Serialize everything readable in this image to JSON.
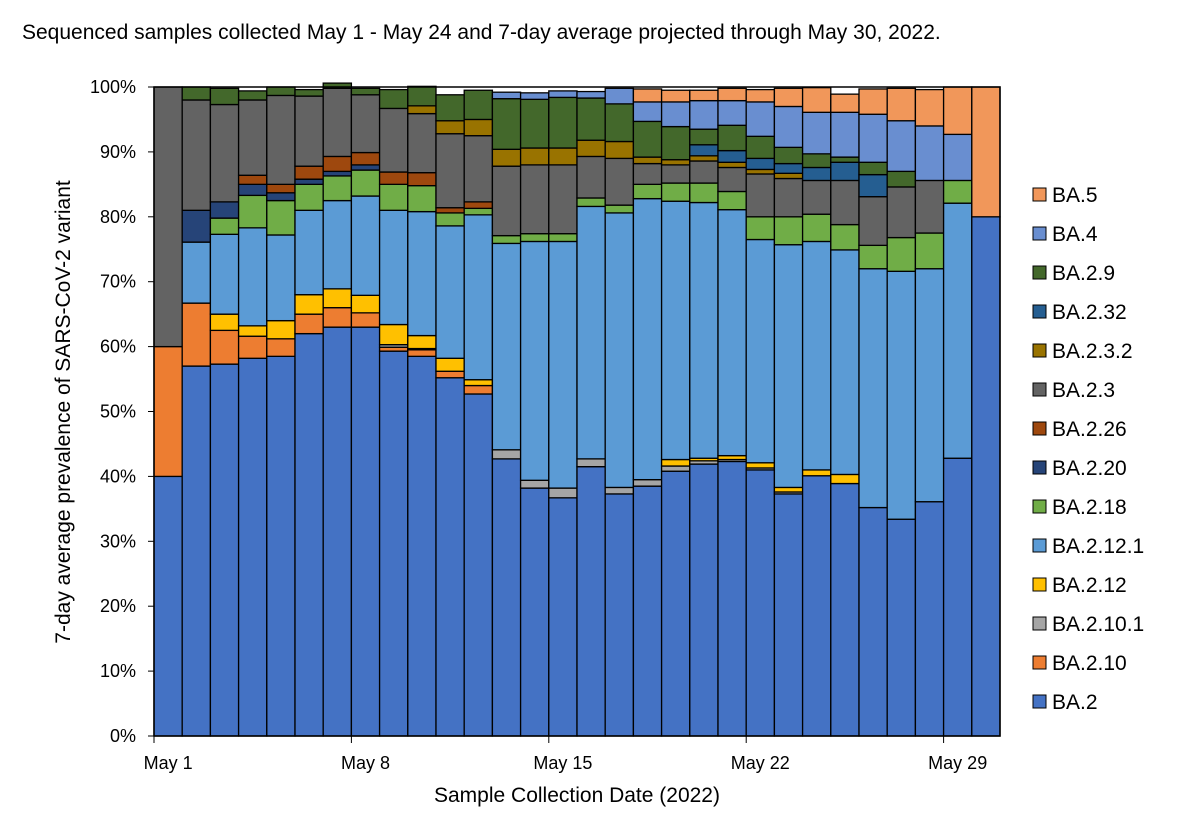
{
  "chart_data": {
    "type": "bar",
    "stacked": true,
    "title": "Sequenced samples collected May 1 - May 24 and 7-day average projected through May 30, 2022.",
    "xlabel": "Sample Collection Date (2022)",
    "ylabel": "7-day average prevalence of SARS-CoV-2 variant",
    "ylim": [
      0,
      100
    ],
    "yticks": [
      "0%",
      "10%",
      "20%",
      "30%",
      "40%",
      "50%",
      "60%",
      "70%",
      "80%",
      "90%",
      "100%"
    ],
    "ytick_values": [
      0,
      10,
      20,
      30,
      40,
      50,
      60,
      70,
      80,
      90,
      100
    ],
    "xtick_labels": [
      "May 1",
      "May 8",
      "May 15",
      "May 22",
      "May 29"
    ],
    "xtick_category_index": [
      0,
      7,
      14,
      21,
      28
    ],
    "categories": [
      "May 1",
      "May 2",
      "May 3",
      "May 4",
      "May 5",
      "May 6",
      "May 7",
      "May 8",
      "May 9",
      "May 10",
      "May 11",
      "May 12",
      "May 13",
      "May 14",
      "May 15",
      "May 16",
      "May 17",
      "May 18",
      "May 19",
      "May 20",
      "May 21",
      "May 22",
      "May 23",
      "May 24",
      "May 25",
      "May 26",
      "May 27",
      "May 28",
      "May 29",
      "May 30"
    ],
    "legend_position": "right",
    "grid": false,
    "series": [
      {
        "name": "BA.2",
        "color": "#4472C4",
        "values": [
          40,
          57,
          57.3,
          58.2,
          58.5,
          62,
          63,
          63,
          59.3,
          58.5,
          55.2,
          52.7,
          42.7,
          38.2,
          36.7,
          41.5,
          37.3,
          38.5,
          40.8,
          41.9,
          42.3,
          41,
          37.3,
          40.1,
          38.9,
          35.2,
          33.4,
          36.1,
          42.8,
          80
        ]
      },
      {
        "name": "BA.2.10",
        "color": "#ED7D31",
        "values": [
          20,
          9.7,
          5.2,
          3.4,
          2.7,
          3,
          3,
          2.2,
          0.6,
          1,
          1,
          1.3,
          0,
          0,
          0,
          0,
          0,
          0,
          0,
          0,
          0,
          0,
          0,
          0,
          0,
          0,
          0,
          0,
          0,
          0
        ]
      },
      {
        "name": "BA.2.10.1",
        "color": "#A5A5A5",
        "values": [
          0,
          0,
          0,
          0,
          0,
          0,
          0,
          0,
          0.4,
          0.2,
          0,
          0,
          1.4,
          1.2,
          1.5,
          1.2,
          1,
          1,
          0.8,
          0.5,
          0.3,
          0.3,
          0.3,
          0,
          0,
          0,
          0,
          0,
          0,
          0
        ]
      },
      {
        "name": "BA.2.12",
        "color": "#FFC000",
        "values": [
          0,
          0,
          2.5,
          1.6,
          2.8,
          3,
          2.9,
          2.7,
          3.1,
          2,
          2,
          0.9,
          0,
          0,
          0,
          0,
          0,
          0,
          1,
          0.4,
          0.6,
          0.8,
          0.7,
          0.9,
          1.4,
          0,
          0,
          0,
          0,
          0
        ]
      },
      {
        "name": "BA.2.12.1",
        "color": "#5B9BD5",
        "values": [
          0,
          9.4,
          12.3,
          15.1,
          13.2,
          13,
          13.6,
          15.3,
          17.6,
          19.1,
          20.4,
          25.4,
          31.8,
          36.8,
          38,
          38.9,
          42.3,
          43.3,
          39.8,
          39.4,
          37.9,
          34.4,
          37.4,
          35.2,
          34.6,
          36.8,
          38.2,
          35.9,
          39.3,
          0
        ]
      },
      {
        "name": "BA.2.18",
        "color": "#70AD47",
        "values": [
          0,
          0,
          2.5,
          5,
          5.3,
          4,
          3.8,
          4,
          4,
          4,
          2,
          1,
          1.2,
          1.2,
          1.2,
          1.3,
          1.2,
          2.2,
          2.8,
          3,
          2.8,
          3.5,
          4.3,
          4.2,
          3.9,
          3.6,
          5.2,
          5.5,
          3.5,
          0
        ]
      },
      {
        "name": "BA.2.20",
        "color": "#264478",
        "values": [
          0,
          4.9,
          2.5,
          1.7,
          1.2,
          0.8,
          0.7,
          0.8,
          0,
          0,
          0,
          0,
          0,
          0,
          0,
          0,
          0,
          0,
          0,
          0,
          0,
          0,
          0,
          0,
          0,
          0,
          0,
          0,
          0,
          0
        ]
      },
      {
        "name": "BA.2.26",
        "color": "#9E480E",
        "values": [
          0,
          0,
          0,
          1.4,
          1.3,
          2,
          2.3,
          1.9,
          1.9,
          2,
          0.8,
          1,
          0,
          0,
          0,
          0,
          0,
          0,
          0,
          0,
          0,
          0,
          0,
          0,
          0,
          0,
          0,
          0,
          0,
          0
        ]
      },
      {
        "name": "BA.2.3",
        "color": "#636363",
        "values": [
          40,
          17,
          15,
          11.6,
          13.7,
          10.8,
          10.5,
          8.9,
          9.8,
          9.1,
          11.4,
          10.2,
          10.7,
          10.6,
          10.6,
          6.4,
          7.2,
          3.2,
          2.8,
          3.4,
          3.7,
          6.6,
          5.9,
          5.2,
          6.8,
          7.5,
          7.8,
          8.1,
          0,
          0
        ]
      },
      {
        "name": "BA.2.3.2",
        "color": "#997300",
        "values": [
          0,
          0,
          0,
          0,
          0,
          0,
          0,
          0,
          0,
          1.2,
          2,
          2.5,
          2.6,
          2.6,
          2.6,
          2.5,
          2.6,
          1,
          0.8,
          0.8,
          0.8,
          0.7,
          0.8,
          0,
          0,
          0,
          0,
          0,
          0,
          0
        ]
      },
      {
        "name": "BA.2.32",
        "color": "#255E91",
        "values": [
          0,
          0,
          0,
          0,
          0,
          0,
          0,
          0,
          0,
          0,
          0,
          0,
          0,
          0,
          0,
          0,
          0,
          0,
          0,
          1.7,
          1.8,
          1.7,
          1.5,
          2,
          2.8,
          3.4,
          0,
          0,
          0,
          0
        ]
      },
      {
        "name": "BA.2.9",
        "color": "#43682B",
        "values": [
          0,
          2,
          2.5,
          1.4,
          1.3,
          1,
          0.8,
          1,
          2.9,
          3,
          4,
          4.5,
          7.8,
          7.5,
          7.8,
          6.5,
          5.8,
          5.5,
          5.1,
          2.4,
          3.9,
          3.4,
          2.5,
          2.1,
          0.8,
          1.9,
          2.4,
          0,
          0,
          0
        ]
      },
      {
        "name": "BA.4",
        "color": "#698ED0",
        "values": [
          0,
          0,
          0,
          0,
          0,
          0,
          0,
          0,
          0,
          0,
          0,
          0,
          1,
          1,
          1,
          1,
          2.4,
          3,
          3.8,
          4.4,
          3.8,
          5.3,
          6.3,
          6.4,
          6.9,
          7.4,
          7.8,
          8.4,
          7.1,
          0
        ]
      },
      {
        "name": "BA.5",
        "color": "#F1975A",
        "values": [
          0,
          0,
          0,
          0,
          0,
          0,
          0,
          0,
          0,
          0,
          0,
          0,
          0,
          0,
          0,
          0,
          0,
          2,
          1.8,
          1.6,
          1.9,
          1.9,
          2.8,
          3.8,
          2.8,
          3.9,
          5,
          5.6,
          7.3,
          20
        ]
      }
    ]
  }
}
